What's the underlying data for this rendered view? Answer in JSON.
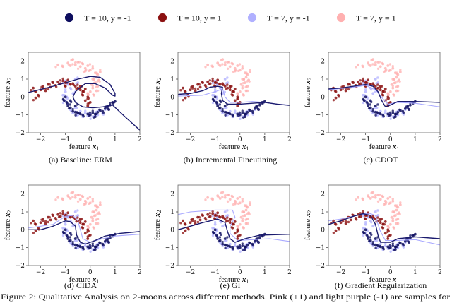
{
  "legend": [
    {
      "label": "T = 10, y = -1",
      "color": "#0d0d5e",
      "key": "t10_neg"
    },
    {
      "label": "T = 10, y = 1",
      "color": "#8b1010",
      "key": "t10_pos"
    },
    {
      "label": "T = 7, y = -1",
      "color": "#b0b0ff",
      "key": "t7_neg"
    },
    {
      "label": "T = 7, y = 1",
      "color": "#ffb0b0",
      "key": "t7_pos"
    }
  ],
  "caption": "Figure 2: Qualitative Analysis on 2-moons across different methods. Pink (+1) and light purple (-1) are samples for",
  "boundary_colors": {
    "T10": "#1a1a6e",
    "T7": "#a8a8ff"
  },
  "chart_data": {
    "type": "scatter",
    "xlabel_prefix": "feature ",
    "xlabel_var": "x",
    "xlabel_sub": "1",
    "ylabel_prefix": "feature ",
    "ylabel_var": "x",
    "ylabel_sub": "2",
    "xlim": [
      -2.5,
      2
    ],
    "ylim": [
      -2,
      2.5
    ],
    "xticks": [
      -2,
      -1,
      0,
      1,
      2
    ],
    "yticks": [
      -2,
      -1,
      0,
      1,
      2
    ],
    "points": {
      "t7_pos": [
        [
          -1.3,
          1.8
        ],
        [
          -1.1,
          1.7
        ],
        [
          -0.9,
          1.9
        ],
        [
          -0.8,
          1.75
        ],
        [
          -0.7,
          2.1
        ],
        [
          -0.6,
          1.8
        ],
        [
          -0.5,
          1.95
        ],
        [
          -0.4,
          1.7
        ],
        [
          -0.3,
          1.85
        ],
        [
          -0.2,
          1.6
        ],
        [
          -0.1,
          1.75
        ],
        [
          0,
          1.5
        ],
        [
          0.1,
          1.6
        ],
        [
          0.2,
          1.35
        ],
        [
          0.25,
          1.1
        ],
        [
          0.3,
          1.25
        ],
        [
          0.35,
          0.95
        ],
        [
          0.2,
          0.8
        ],
        [
          0.3,
          0.6
        ],
        [
          0.1,
          0.5
        ],
        [
          0.25,
          0.35
        ],
        [
          0,
          0.3
        ],
        [
          0.15,
          0.1
        ],
        [
          -0.1,
          0.2
        ],
        [
          0.05,
          0.7
        ],
        [
          -0.2,
          1.45
        ],
        [
          0.4,
          1.4
        ],
        [
          0.1,
          1.0
        ]
      ],
      "t7_neg": [
        [
          -1,
          0.9
        ],
        [
          -0.9,
          0.7
        ],
        [
          -0.8,
          0.5
        ],
        [
          -0.6,
          1.0
        ],
        [
          -0.5,
          0.8
        ],
        [
          -1.0,
          0.3
        ],
        [
          -1.1,
          0.1
        ],
        [
          -1.0,
          -0.2
        ],
        [
          -0.9,
          -0.4
        ],
        [
          -0.8,
          -0.7
        ],
        [
          -0.7,
          -0.9
        ],
        [
          -0.5,
          -1.0
        ],
        [
          -0.3,
          -1.1
        ],
        [
          -0.1,
          -1.05
        ],
        [
          0.1,
          -1.1
        ],
        [
          0.3,
          -1.0
        ],
        [
          0.5,
          -0.9
        ],
        [
          0.6,
          -0.7
        ],
        [
          0.3,
          -0.8
        ],
        [
          -0.2,
          -0.9
        ],
        [
          -0.6,
          -0.6
        ],
        [
          -0.4,
          -0.8
        ],
        [
          0,
          -0.95
        ],
        [
          -0.95,
          0.0
        ],
        [
          -0.7,
          0.2
        ],
        [
          0.2,
          -1.05
        ]
      ],
      "t10_pos": [
        [
          -2.3,
          0.5
        ],
        [
          -2.2,
          0.3
        ],
        [
          -2.1,
          0.1
        ],
        [
          -2.0,
          0.4
        ],
        [
          -1.9,
          0.6
        ],
        [
          -1.8,
          0.35
        ],
        [
          -1.7,
          0.7
        ],
        [
          -1.6,
          0.55
        ],
        [
          -1.5,
          0.8
        ],
        [
          -1.4,
          0.65
        ],
        [
          -1.3,
          0.85
        ],
        [
          -1.2,
          0.75
        ],
        [
          -1.1,
          0.9
        ],
        [
          -1.0,
          0.8
        ],
        [
          -0.9,
          0.95
        ],
        [
          -0.8,
          0.7
        ],
        [
          -0.7,
          0.75
        ],
        [
          -0.6,
          0.6
        ],
        [
          -0.5,
          0.5
        ],
        [
          -0.4,
          0.4
        ],
        [
          -0.3,
          0.3
        ],
        [
          -0.2,
          0.45
        ],
        [
          -0.3,
          0.1
        ],
        [
          -0.1,
          0.0
        ],
        [
          -0.2,
          -0.2
        ],
        [
          0,
          -0.3
        ],
        [
          -0.1,
          -0.5
        ],
        [
          -0.4,
          0.6
        ],
        [
          -2.2,
          -0.05
        ],
        [
          -1.0,
          0.6
        ]
      ],
      "t10_neg": [
        [
          -1.0,
          0.0
        ],
        [
          -1.05,
          -0.2
        ],
        [
          -0.95,
          -0.3
        ],
        [
          -0.9,
          -0.5
        ],
        [
          -0.8,
          -0.6
        ],
        [
          -0.7,
          -0.8
        ],
        [
          -0.6,
          -0.85
        ],
        [
          -0.5,
          -0.9
        ],
        [
          -0.4,
          -0.95
        ],
        [
          -0.3,
          -1.0
        ],
        [
          -0.1,
          -0.95
        ],
        [
          0,
          -1.0
        ],
        [
          0.1,
          -0.9
        ],
        [
          0.2,
          -0.95
        ],
        [
          0.3,
          -0.85
        ],
        [
          0.4,
          -0.75
        ],
        [
          0.5,
          -0.8
        ],
        [
          0.6,
          -0.65
        ],
        [
          0.7,
          -0.5
        ],
        [
          0.8,
          -0.45
        ],
        [
          0.9,
          -0.3
        ],
        [
          1.0,
          -0.25
        ],
        [
          0.75,
          -0.7
        ],
        [
          -0.8,
          -0.2
        ],
        [
          -0.6,
          -0.5
        ],
        [
          0.2,
          -1.1
        ]
      ]
    },
    "panels": [
      {
        "caption": "(a) Baseline: ERM",
        "boundary_T10": [
          [
            -2.5,
            0.25
          ],
          [
            -1.5,
            0.6
          ],
          [
            -0.5,
            1.0
          ],
          [
            0,
            1.15
          ],
          [
            0.4,
            1.1
          ],
          [
            0.8,
            0.7
          ],
          [
            1.0,
            0.2
          ],
          [
            1.0,
            0.05
          ],
          [
            0.9,
            0.1
          ],
          [
            0.6,
            0.5
          ],
          [
            0.2,
            0.75
          ],
          [
            -0.2,
            0.75
          ],
          [
            -0.6,
            0.3
          ],
          [
            -0.7,
            0.0
          ],
          [
            -0.6,
            -0.3
          ],
          [
            -0.3,
            -0.55
          ],
          [
            0.1,
            -0.6
          ],
          [
            0.5,
            -0.55
          ],
          [
            0.9,
            -0.45
          ],
          [
            1.4,
            -1.1
          ],
          [
            2,
            -1.85
          ]
        ],
        "boundary_T7": []
      },
      {
        "caption": "(b) Incremental Fineutining",
        "boundary_T10": [
          [
            -2.5,
            0.15
          ],
          [
            -2,
            0.2
          ],
          [
            -1.5,
            0.35
          ],
          [
            -1.2,
            0.55
          ],
          [
            -0.9,
            0.6
          ],
          [
            -0.7,
            0.55
          ],
          [
            -0.75,
            0.2
          ],
          [
            -0.7,
            -0.2
          ],
          [
            -0.5,
            -0.4
          ],
          [
            0,
            -0.4
          ],
          [
            0.5,
            -0.35
          ],
          [
            1,
            -0.3
          ],
          [
            1.5,
            -0.4
          ],
          [
            2,
            -0.47
          ]
        ],
        "boundary_T7": [
          [
            -2.5,
            0.05
          ],
          [
            -1.5,
            0.1
          ],
          [
            -1.0,
            0.3
          ],
          [
            -0.7,
            0.45
          ],
          [
            -0.6,
            0.0
          ],
          [
            -0.4,
            -0.3
          ],
          [
            0,
            -0.3
          ],
          [
            0.5,
            -0.25
          ],
          [
            1,
            -0.3
          ],
          [
            1.5,
            -0.4
          ],
          [
            2,
            -0.45
          ]
        ]
      },
      {
        "caption": "(c) CDOT",
        "boundary_T10": [
          [
            -2.5,
            0.45
          ],
          [
            -2,
            0.5
          ],
          [
            -1.5,
            0.6
          ],
          [
            -1,
            0.7
          ],
          [
            -0.7,
            0.6
          ],
          [
            -0.5,
            0.3
          ],
          [
            -0.35,
            -0.2
          ],
          [
            -0.2,
            -0.55
          ],
          [
            0,
            -0.45
          ],
          [
            0.3,
            -0.25
          ],
          [
            1,
            -0.25
          ],
          [
            2,
            -0.3
          ]
        ],
        "boundary_T7": [
          [
            -2.5,
            0.4
          ],
          [
            -1.5,
            0.55
          ],
          [
            -1,
            0.65
          ],
          [
            -0.6,
            0.4
          ],
          [
            -0.3,
            -0.1
          ],
          [
            -0.1,
            -0.4
          ],
          [
            0.3,
            -0.3
          ],
          [
            1,
            -0.35
          ],
          [
            1.5,
            -0.45
          ],
          [
            2,
            -0.55
          ]
        ]
      },
      {
        "caption": "(d) CIDA",
        "boundary_T10": [
          [
            -2.5,
            0.0
          ],
          [
            -2,
            0.0
          ],
          [
            -1.5,
            0.2
          ],
          [
            -1.0,
            0.5
          ],
          [
            -0.8,
            0.45
          ],
          [
            -0.6,
            0.2
          ],
          [
            -0.55,
            -0.3
          ],
          [
            -0.4,
            -0.7
          ],
          [
            -0.2,
            -0.8
          ],
          [
            0.2,
            -0.6
          ],
          [
            0.6,
            -0.35
          ],
          [
            1.2,
            -0.2
          ],
          [
            2,
            -0.1
          ]
        ],
        "boundary_T7": [
          [
            -2.5,
            0.1
          ],
          [
            -1.5,
            0.3
          ],
          [
            -1.0,
            0.75
          ],
          [
            -0.7,
            0.8
          ],
          [
            -0.5,
            0.5
          ],
          [
            -0.4,
            0.0
          ],
          [
            -0.3,
            -0.5
          ],
          [
            0,
            -0.7
          ],
          [
            0.5,
            -0.5
          ],
          [
            1,
            -0.35
          ],
          [
            2,
            -0.25
          ]
        ]
      },
      {
        "caption": "(e) GI",
        "boundary_T10": [
          [
            -2.5,
            0.0
          ],
          [
            -2,
            0.2
          ],
          [
            -1.5,
            0.4
          ],
          [
            -0.9,
            0.6
          ],
          [
            -0.6,
            0.4
          ],
          [
            -0.5,
            -0.1
          ],
          [
            -0.4,
            -0.5
          ],
          [
            -0.2,
            -0.7
          ],
          [
            0.2,
            -0.5
          ],
          [
            0.8,
            -0.3
          ],
          [
            2,
            -0.25
          ]
        ],
        "boundary_T7": [
          [
            -2.5,
            0.85
          ],
          [
            -2,
            1.0
          ],
          [
            -1,
            1.1
          ],
          [
            -0.3,
            1.1
          ],
          [
            -0.2,
            0.7
          ],
          [
            -0.4,
            0.2
          ],
          [
            -0.4,
            -0.2
          ],
          [
            -0.1,
            -0.6
          ],
          [
            0.5,
            -0.55
          ],
          [
            1.2,
            -0.5
          ],
          [
            2,
            -0.65
          ]
        ]
      },
      {
        "caption": "(f) Gradient Regularization",
        "boundary_T10": [
          [
            -2.5,
            0.3
          ],
          [
            -2,
            0.5
          ],
          [
            -1.5,
            0.75
          ],
          [
            -1.1,
            0.9
          ],
          [
            -0.8,
            0.8
          ],
          [
            -0.6,
            0.3
          ],
          [
            -0.5,
            -0.3
          ],
          [
            -0.4,
            -0.7
          ],
          [
            0,
            -0.7
          ],
          [
            0.3,
            -0.5
          ],
          [
            1,
            -0.4
          ],
          [
            2,
            -0.5
          ]
        ],
        "boundary_T7": [
          [
            -2.5,
            0.5
          ],
          [
            -2,
            0.6
          ],
          [
            -1.2,
            0.85
          ],
          [
            -0.8,
            0.9
          ],
          [
            -0.6,
            0.8
          ],
          [
            -0.5,
            0.3
          ],
          [
            -0.4,
            -0.1
          ],
          [
            -0.2,
            -0.6
          ],
          [
            0.2,
            -0.6
          ],
          [
            1,
            -0.55
          ],
          [
            2,
            -0.85
          ]
        ]
      }
    ]
  }
}
